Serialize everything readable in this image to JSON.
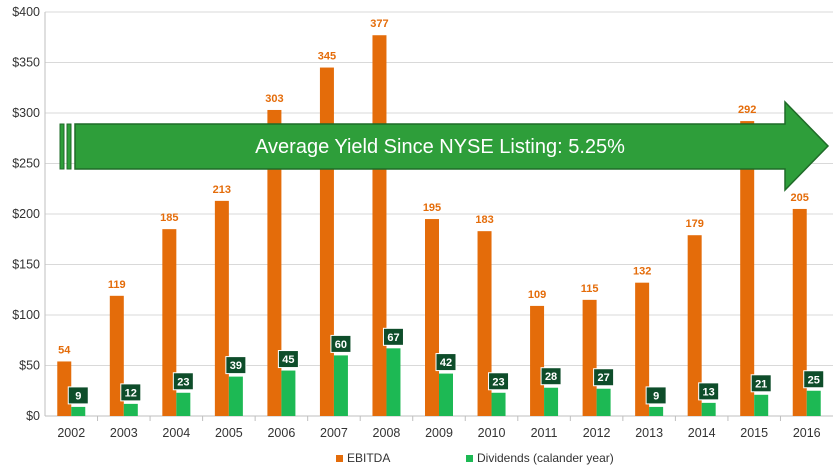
{
  "chart_data": {
    "type": "bar",
    "categories": [
      "2002",
      "2003",
      "2004",
      "2005",
      "2006",
      "2007",
      "2008",
      "2009",
      "2010",
      "2011",
      "2012",
      "2013",
      "2014",
      "2015",
      "2016"
    ],
    "series": [
      {
        "name": "EBITDA",
        "color": "#E46C0A",
        "values": [
          54,
          119,
          185,
          213,
          303,
          345,
          377,
          195,
          183,
          109,
          115,
          132,
          179,
          292,
          205
        ]
      },
      {
        "name": "Dividends (calander year)",
        "color": "#1DB954",
        "values": [
          9,
          12,
          23,
          39,
          45,
          60,
          67,
          42,
          23,
          28,
          27,
          9,
          13,
          21,
          25
        ]
      }
    ],
    "y_ticks": [
      "$0",
      "$50",
      "$100",
      "$150",
      "$200",
      "$250",
      "$300",
      "$350",
      "$400"
    ],
    "y_tick_values": [
      0,
      50,
      100,
      150,
      200,
      250,
      300,
      350,
      400
    ],
    "ylim": [
      0,
      400
    ],
    "grid": true,
    "legend_position": "bottom-center",
    "dividend_label_color": "#0E4D2A",
    "annotation": {
      "text": "Average Yield Since NYSE Listing: 5.25%",
      "color": "#2E9E3A"
    }
  }
}
